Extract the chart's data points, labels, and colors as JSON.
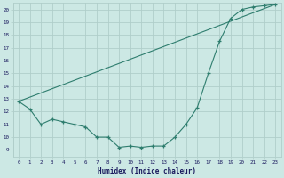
{
  "xlabel": "Humidex (Indice chaleur)",
  "xlim": [
    -0.5,
    23.5
  ],
  "ylim": [
    8.5,
    20.5
  ],
  "yticks": [
    9,
    10,
    11,
    12,
    13,
    14,
    15,
    16,
    17,
    18,
    19,
    20
  ],
  "xticks": [
    0,
    1,
    2,
    3,
    4,
    5,
    6,
    7,
    8,
    9,
    10,
    11,
    12,
    13,
    14,
    15,
    16,
    17,
    18,
    19,
    20,
    21,
    22,
    23
  ],
  "line_color": "#2e7d6e",
  "background_color": "#cce8e4",
  "grid_color": "#b0ceca",
  "line1_x": [
    0,
    1,
    2,
    3,
    4,
    5,
    6,
    7,
    8,
    9,
    10,
    11,
    12,
    13,
    14,
    15,
    16,
    17,
    18,
    19,
    20,
    21,
    22,
    23
  ],
  "line1_y": [
    12.8,
    12.2,
    11.0,
    11.4,
    11.2,
    11.0,
    10.8,
    10.0,
    10.0,
    9.2,
    9.3,
    9.2,
    9.3,
    9.3,
    10.0,
    11.0,
    12.3,
    15.0,
    17.5,
    19.3,
    20.0,
    20.2,
    20.3,
    20.4
  ],
  "line2_x": [
    0,
    23
  ],
  "line2_y": [
    12.8,
    20.4
  ],
  "tick_color": "#1a1a5e",
  "xlabel_color": "#1a1a5e",
  "xlabel_fontsize": 5.5,
  "tick_fontsize": 4.2,
  "marker_size": 3.5,
  "linewidth": 0.8
}
